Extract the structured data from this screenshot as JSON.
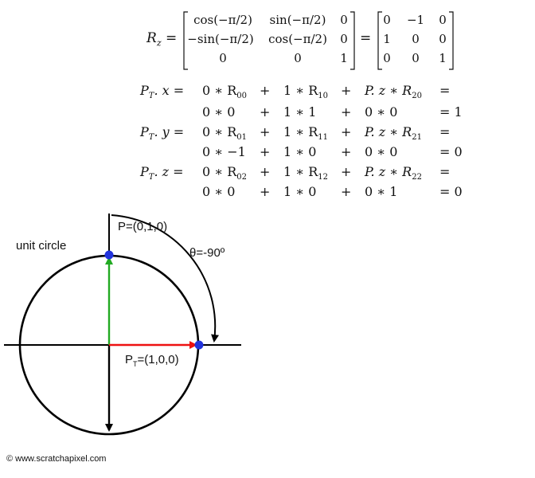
{
  "matrix_eq": {
    "lhs": "R",
    "lhs_sub": "z",
    "equals": "=",
    "symbolic_rows": [
      [
        "cos(−π/2)",
        "sin(−π/2)",
        "0"
      ],
      [
        "−sin(−π/2)",
        "cos(−π/2)",
        "0"
      ],
      [
        "0",
        "0",
        "1"
      ]
    ],
    "numeric_rows": [
      [
        "0",
        "−1",
        "0"
      ],
      [
        "1",
        "0",
        "0"
      ],
      [
        "0",
        "0",
        "1"
      ]
    ]
  },
  "equations": [
    {
      "lhs": "P",
      "lhs_sub": "T",
      "lhs_tail": ". x =",
      "symbolic": [
        "0 ∗ R",
        "00",
        "+",
        "1 ∗ R",
        "10",
        "+",
        "P. z ∗ R",
        "20",
        "="
      ],
      "numeric": [
        "0 ∗ 0",
        "+",
        "1 ∗ 1",
        "+",
        "0 ∗ 0",
        "= 1"
      ]
    },
    {
      "lhs": "P",
      "lhs_sub": "T",
      "lhs_tail": ". y =",
      "symbolic": [
        "0 ∗ R",
        "01",
        "+",
        "1 ∗ R",
        "11",
        "+",
        "P. z ∗ R",
        "21",
        "="
      ],
      "numeric": [
        "0 ∗ −1",
        "+",
        "1 ∗ 0",
        "+",
        "0 ∗ 0",
        "= 0"
      ]
    },
    {
      "lhs": "P",
      "lhs_sub": "T",
      "lhs_tail": ". z =",
      "symbolic": [
        "0 ∗ R",
        "02",
        "+",
        "1 ∗ R",
        "12",
        "+",
        "P. z ∗ R",
        "22",
        "="
      ],
      "numeric": [
        "0 ∗ 0",
        "+",
        "1 ∗ 0",
        "+",
        "0 ∗ 1",
        "= 0"
      ]
    }
  ],
  "diagram": {
    "circle_label": "unit circle",
    "point_p_label": "P=(0,1,0)",
    "angle_label": "θ=-90º",
    "point_pt_label_main": "P",
    "point_pt_label_sub": "T",
    "point_pt_label_tail": "=(1,0,0)",
    "colors": {
      "axes": "#000000",
      "vector_p": "#22aa22",
      "vector_pt": "#ee1111",
      "points": "#2233dd"
    }
  },
  "copyright": "© www.scratchapixel.com"
}
